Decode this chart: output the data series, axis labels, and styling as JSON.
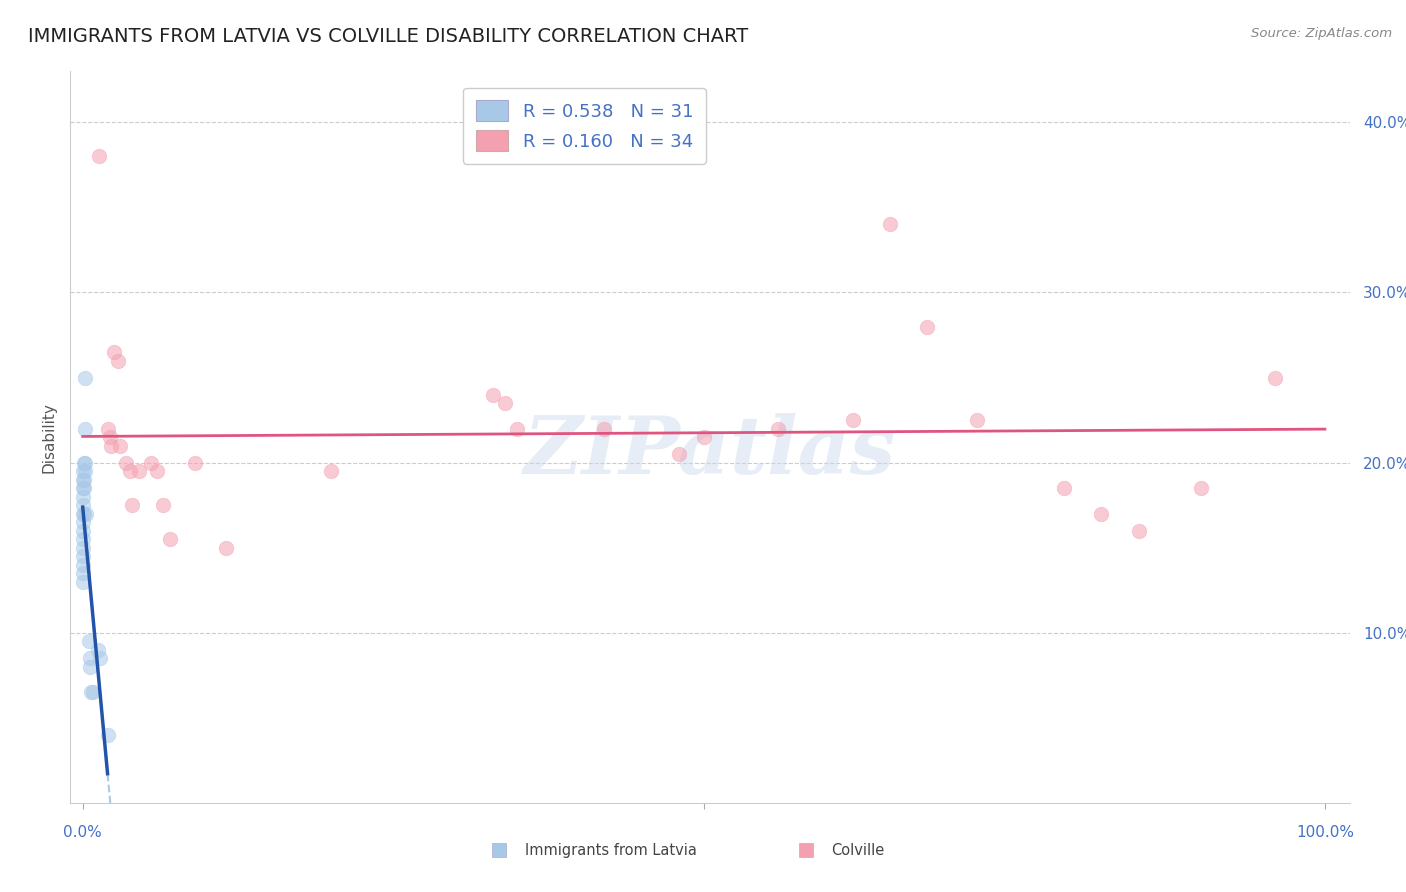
{
  "title": "IMMIGRANTS FROM LATVIA VS COLVILLE DISABILITY CORRELATION CHART",
  "source": "Source: ZipAtlas.com",
  "ylabel": "Disability",
  "legend_labels": [
    "Immigrants from Latvia",
    "Colville"
  ],
  "R_blue": 0.538,
  "N_blue": 31,
  "R_pink": 0.16,
  "N_pink": 34,
  "blue_color": "#a8c8e8",
  "pink_color": "#f4a0b0",
  "blue_line_color": "#2255aa",
  "pink_line_color": "#e05580",
  "blue_dash_color": "#99bbdd",
  "blue_scatter": [
    [
      0.0,
      0.195
    ],
    [
      0.0,
      0.19
    ],
    [
      0.0,
      0.185
    ],
    [
      0.0,
      0.18
    ],
    [
      0.0,
      0.175
    ],
    [
      0.0,
      0.17
    ],
    [
      0.0,
      0.165
    ],
    [
      0.0,
      0.16
    ],
    [
      0.0,
      0.155
    ],
    [
      0.0,
      0.15
    ],
    [
      0.0,
      0.145
    ],
    [
      0.0,
      0.14
    ],
    [
      0.0,
      0.135
    ],
    [
      0.0,
      0.13
    ],
    [
      0.001,
      0.2
    ],
    [
      0.001,
      0.19
    ],
    [
      0.001,
      0.185
    ],
    [
      0.001,
      0.17
    ],
    [
      0.002,
      0.25
    ],
    [
      0.002,
      0.2
    ],
    [
      0.002,
      0.195
    ],
    [
      0.002,
      0.22
    ],
    [
      0.003,
      0.17
    ],
    [
      0.005,
      0.095
    ],
    [
      0.006,
      0.085
    ],
    [
      0.006,
      0.08
    ],
    [
      0.007,
      0.065
    ],
    [
      0.008,
      0.065
    ],
    [
      0.012,
      0.09
    ],
    [
      0.014,
      0.085
    ],
    [
      0.02,
      0.04
    ]
  ],
  "pink_scatter": [
    [
      0.013,
      0.38
    ],
    [
      0.02,
      0.22
    ],
    [
      0.022,
      0.215
    ],
    [
      0.023,
      0.21
    ],
    [
      0.025,
      0.265
    ],
    [
      0.028,
      0.26
    ],
    [
      0.03,
      0.21
    ],
    [
      0.035,
      0.2
    ],
    [
      0.038,
      0.195
    ],
    [
      0.04,
      0.175
    ],
    [
      0.045,
      0.195
    ],
    [
      0.055,
      0.2
    ],
    [
      0.06,
      0.195
    ],
    [
      0.065,
      0.175
    ],
    [
      0.07,
      0.155
    ],
    [
      0.09,
      0.2
    ],
    [
      0.115,
      0.15
    ],
    [
      0.2,
      0.195
    ],
    [
      0.33,
      0.24
    ],
    [
      0.34,
      0.235
    ],
    [
      0.35,
      0.22
    ],
    [
      0.42,
      0.22
    ],
    [
      0.48,
      0.205
    ],
    [
      0.5,
      0.215
    ],
    [
      0.56,
      0.22
    ],
    [
      0.62,
      0.225
    ],
    [
      0.65,
      0.34
    ],
    [
      0.68,
      0.28
    ],
    [
      0.72,
      0.225
    ],
    [
      0.79,
      0.185
    ],
    [
      0.82,
      0.17
    ],
    [
      0.85,
      0.16
    ],
    [
      0.9,
      0.185
    ],
    [
      0.96,
      0.25
    ]
  ],
  "ylim": [
    0.0,
    0.43
  ],
  "xlim": [
    -0.01,
    1.02
  ],
  "yticks": [
    0.1,
    0.2,
    0.3,
    0.4
  ],
  "ytick_labels": [
    "10.0%",
    "20.0%",
    "30.0%",
    "40.0%"
  ],
  "xtick_positions": [
    0.0,
    0.5,
    1.0
  ],
  "xtick_labels_shown": [
    "0.0%",
    "100.0%"
  ],
  "grid_color": "#cccccc",
  "background_color": "#ffffff",
  "watermark_text": "ZIPatlas",
  "title_fontsize": 14,
  "axis_label_fontsize": 11,
  "tick_fontsize": 11,
  "legend_fontsize": 13
}
